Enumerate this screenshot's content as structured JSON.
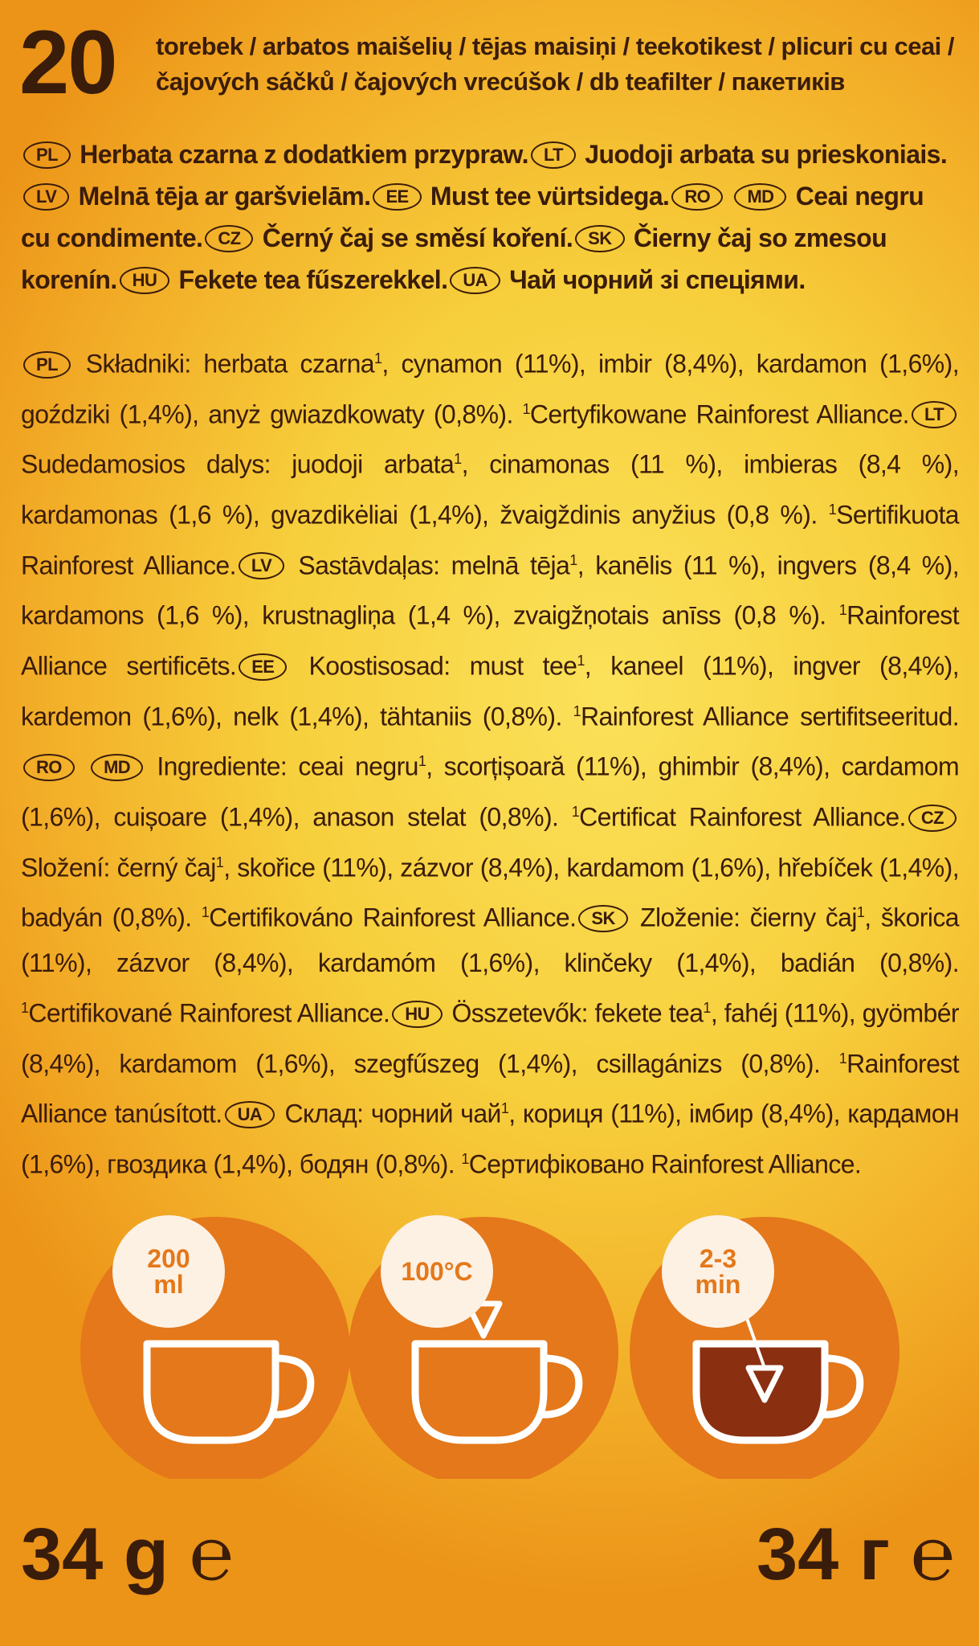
{
  "header": {
    "number": "20",
    "text": "torebek / arbatos maišelių / tējas maisiņi / teekotikest / plicuri cu ceai / čajových sáčků / čajových vrecúšok / db teafilter / пакетиків"
  },
  "description": [
    {
      "badge": "PL"
    },
    {
      "text": "Herbata czarna z dodatkiem przypraw."
    },
    {
      "badge": "LT"
    },
    {
      "text": "Juodoji arbata su prieskoniais."
    },
    {
      "badge": "LV"
    },
    {
      "text": "Melnā tēja ar garšvielām."
    },
    {
      "badge": "EE"
    },
    {
      "text": "Must tee vürtsidega."
    },
    {
      "badge": "RO"
    },
    {
      "badge": "MD"
    },
    {
      "text": "Ceai negru cu condimente."
    },
    {
      "badge": "CZ"
    },
    {
      "text": "Černý čaj se směsí koření."
    },
    {
      "badge": "SK"
    },
    {
      "text": "Čierny čaj so zmesou korenín."
    },
    {
      "badge": "HU"
    },
    {
      "text": "Fekete tea fűszerekkel."
    },
    {
      "badge": "UA"
    },
    {
      "text": "Чай чорний зі спеціями."
    }
  ],
  "ingredients": [
    {
      "badge": "PL"
    },
    {
      "text": "Składniki: herbata czarna"
    },
    {
      "sup": "1"
    },
    {
      "text": ", cynamon (11%), imbir (8,4%), kardamon (1,6%), goździki (1,4%), anyż gwiazdkowaty (0,8%). "
    },
    {
      "sup": "1"
    },
    {
      "text": "Certyfikowane Rainforest Alliance."
    },
    {
      "badge": "LT"
    },
    {
      "text": "Sudedamosios dalys: juodoji arbata"
    },
    {
      "sup": "1"
    },
    {
      "text": ", cinamonas (11 %), imbieras (8,4 %), kardamonas (1,6 %), gvazdikėliai (1,4%), žvaigždinis anyžius (0,8 %). "
    },
    {
      "sup": "1"
    },
    {
      "text": "Sertifikuota Rainforest Alliance."
    },
    {
      "badge": "LV"
    },
    {
      "text": "Sastāvdaļas: melnā tēja"
    },
    {
      "sup": "1"
    },
    {
      "text": ", kanēlis (11 %), ingvers (8,4 %), kardamons (1,6 %), krustnagliņa (1,4 %), zvaigžņotais anīss (0,8 %). "
    },
    {
      "sup": "1"
    },
    {
      "text": "Rainforest Alliance sertificēts."
    },
    {
      "badge": "EE"
    },
    {
      "text": "Koostisosad: must tee"
    },
    {
      "sup": "1"
    },
    {
      "text": ", kaneel (11%), ingver (8,4%), kardemon (1,6%), nelk (1,4%), tähtaniis (0,8%). "
    },
    {
      "sup": "1"
    },
    {
      "text": "Rainforest Alliance sertifitseeritud."
    },
    {
      "badge": "RO"
    },
    {
      "badge": "MD"
    },
    {
      "text": "Ingrediente: ceai negru"
    },
    {
      "sup": "1"
    },
    {
      "text": ", scorțișoară (11%), ghimbir (8,4%), cardamom (1,6%), cuișoare (1,4%), anason stelat (0,8%). "
    },
    {
      "sup": "1"
    },
    {
      "text": "Certificat Rainforest Alliance."
    },
    {
      "badge": "CZ"
    },
    {
      "text": "Složení: černý čaj"
    },
    {
      "sup": "1"
    },
    {
      "text": ", skořice (11%), zázvor (8,4%), kardamom (1,6%), hřebíček (1,4%), badyán (0,8%). "
    },
    {
      "sup": "1"
    },
    {
      "text": "Certifikováno Rainforest Alliance."
    },
    {
      "badge": "SK"
    },
    {
      "text": "Zloženie: čierny čaj"
    },
    {
      "sup": "1"
    },
    {
      "text": ", škorica (11%), zázvor (8,4%), kardamóm (1,6%), klinčeky (1,4%), badián (0,8%). "
    },
    {
      "sup": "1"
    },
    {
      "text": "Certifikované Rainforest Alliance."
    },
    {
      "badge": "HU"
    },
    {
      "text": "Összetevők: fekete tea"
    },
    {
      "sup": "1"
    },
    {
      "text": ", fahéj (11%), gyömbér (8,4%), kardamom (1,6%), szegfűszeg (1,4%), csillagánizs (0,8%). "
    },
    {
      "sup": "1"
    },
    {
      "text": "Rainforest Alliance tanúsított."
    },
    {
      "badge": "UA"
    },
    {
      "text": "Склад: чорний чай"
    },
    {
      "sup": "1"
    },
    {
      "text": ", кориця (11%), імбир (8,4%), кардамон (1,6%), гвоздика (1,4%), бодян (0,8%). "
    },
    {
      "sup": "1"
    },
    {
      "text": "Сертифіковано Rainforest Alliance."
    }
  ],
  "icons": [
    {
      "lines": [
        "200",
        "ml"
      ]
    },
    {
      "lines": [
        "100°C"
      ]
    },
    {
      "lines": [
        "2-3",
        "min"
      ]
    }
  ],
  "weights": {
    "left": "34 g",
    "right": "34 г",
    "symbol": "℮"
  }
}
